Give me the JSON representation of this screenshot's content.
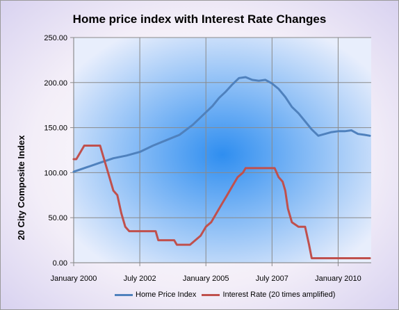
{
  "chart_data": {
    "type": "line",
    "title": "Home price index with Interest Rate Changes",
    "ylabel": "20 City Composite Index",
    "xlabel": "",
    "ylim": [
      0,
      250
    ],
    "yticks": [
      "0.00",
      "50.00",
      "100.00",
      "150.00",
      "200.00",
      "250.00"
    ],
    "xticks": [
      "January 2000",
      "July 2002",
      "January 2005",
      "July 2007",
      "January 2010"
    ],
    "xlim": [
      2000.0,
      2011.25
    ],
    "grid": true,
    "legend_position": "bottom",
    "colors": {
      "home": "#4f81bd",
      "rate": "#c0504d",
      "plot_center": "#2f8ef0",
      "plot_edge": "#e8eefc"
    },
    "series": [
      {
        "name": "Home Price Index",
        "x": [
          2000.0,
          2000.5,
          2001.0,
          2001.5,
          2002.0,
          2002.5,
          2003.0,
          2003.5,
          2004.0,
          2004.5,
          2005.0,
          2005.25,
          2005.5,
          2005.75,
          2006.0,
          2006.25,
          2006.5,
          2006.75,
          2007.0,
          2007.25,
          2007.5,
          2007.75,
          2008.0,
          2008.25,
          2008.5,
          2008.75,
          2009.0,
          2009.25,
          2009.5,
          2009.75,
          2010.0,
          2010.25,
          2010.5,
          2010.75,
          2011.0,
          2011.2
        ],
        "values": [
          101,
          106,
          111,
          116,
          119,
          123,
          130,
          136,
          142,
          153,
          167,
          174,
          183,
          190,
          198,
          205,
          206,
          203,
          202,
          203,
          199,
          193,
          184,
          173,
          166,
          157,
          148,
          141,
          143,
          145,
          146,
          146,
          147,
          143,
          142,
          141
        ]
      },
      {
        "name": "Interest Rate (20 times amplified)",
        "x": [
          2000.0,
          2000.1,
          2000.2,
          2000.3,
          2000.4,
          2000.9,
          2001.0,
          2001.1,
          2001.3,
          2001.5,
          2001.65,
          2001.8,
          2001.95,
          2002.1,
          2002.25,
          2002.4,
          2002.8,
          2003.0,
          2003.1,
          2003.2,
          2003.4,
          2003.6,
          2003.8,
          2003.9,
          2004.0,
          2004.1,
          2004.2,
          2004.4,
          2004.6,
          2004.8,
          2005.0,
          2005.2,
          2005.4,
          2005.6,
          2005.8,
          2006.0,
          2006.2,
          2006.4,
          2006.5,
          2006.7,
          2007.0,
          2007.2,
          2007.4,
          2007.6,
          2007.75,
          2007.9,
          2008.0,
          2008.1,
          2008.25,
          2008.5,
          2008.75,
          2008.9,
          2009.0,
          2009.2,
          2010.0,
          2011.2
        ],
        "values": [
          115,
          115,
          120,
          125,
          130,
          130,
          130,
          120,
          100,
          80,
          75,
          55,
          40,
          35,
          35,
          35,
          35,
          35,
          35,
          25,
          25,
          25,
          25,
          20,
          20,
          20,
          20,
          20,
          25,
          30,
          40,
          45,
          55,
          65,
          75,
          85,
          95,
          100,
          105,
          105,
          105,
          105,
          105,
          105,
          95,
          90,
          80,
          60,
          45,
          40,
          40,
          20,
          5,
          5,
          5,
          5
        ]
      }
    ]
  }
}
